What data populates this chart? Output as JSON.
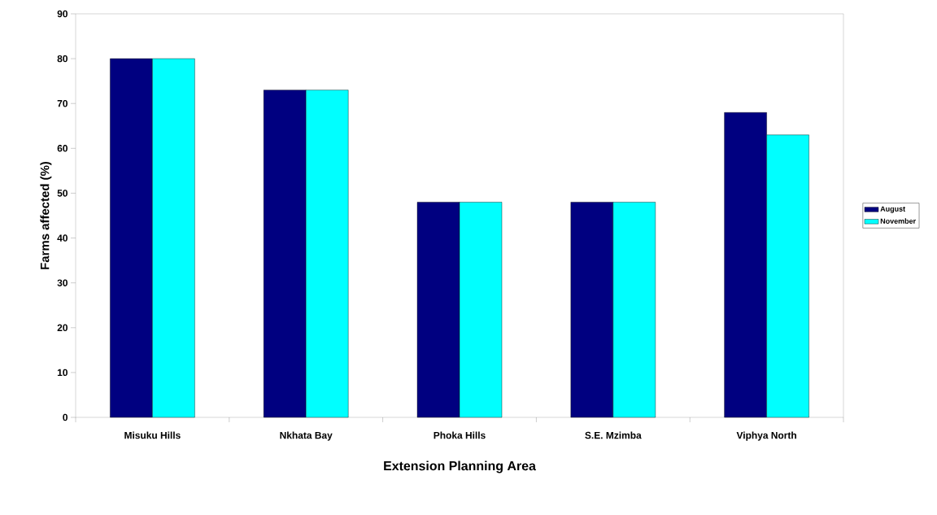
{
  "chart_data": {
    "type": "bar",
    "xlabel": "Extension Planning Area",
    "ylabel": "Farms affected (%)",
    "categories": [
      "Misuku Hills",
      "Nkhata Bay",
      "Phoka Hills",
      "S.E. Mzimba",
      "Viphya North"
    ],
    "series": [
      {
        "name": "August",
        "color": "#000080",
        "values": [
          80,
          73,
          48,
          48,
          68
        ]
      },
      {
        "name": "November",
        "color": "#00ffff",
        "values": [
          80,
          73,
          48,
          48,
          63
        ]
      }
    ],
    "ylim": [
      0,
      90
    ],
    "yticks": [
      0,
      10,
      20,
      30,
      40,
      50,
      60,
      70,
      80,
      90
    ],
    "legend": "right"
  }
}
